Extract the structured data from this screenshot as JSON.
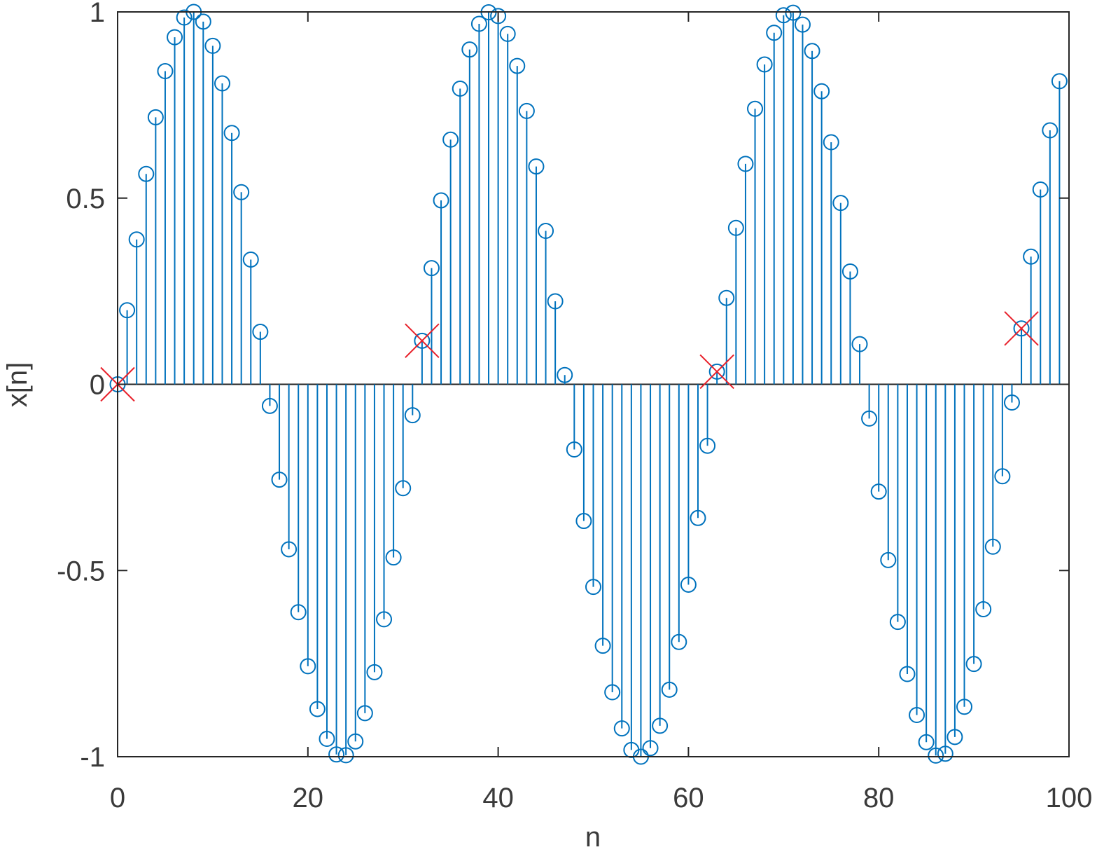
{
  "chart_data": {
    "type": "stem",
    "xlabel": "n",
    "ylabel": "x[n]",
    "xlim": [
      0,
      100
    ],
    "ylim": [
      -1,
      1
    ],
    "xticks": [
      0,
      20,
      40,
      60,
      80,
      100
    ],
    "yticks": [
      -1,
      -0.5,
      0,
      0.5,
      1
    ],
    "series": [
      {
        "color": "#0072bd",
        "marker": "circle",
        "x": [
          0,
          1,
          2,
          3,
          4,
          5,
          6,
          7,
          8,
          9,
          10,
          11,
          12,
          13,
          14,
          15,
          16,
          17,
          18,
          19,
          20,
          21,
          22,
          23,
          24,
          25,
          26,
          27,
          28,
          29,
          30,
          31,
          32,
          33,
          34,
          35,
          36,
          37,
          38,
          39,
          40,
          41,
          42,
          43,
          44,
          45,
          46,
          47,
          48,
          49,
          50,
          51,
          52,
          53,
          54,
          55,
          56,
          57,
          58,
          59,
          60,
          61,
          62,
          63,
          64,
          65,
          66,
          67,
          68,
          69,
          70,
          71,
          72,
          73,
          74,
          75,
          76,
          77,
          78,
          79,
          80,
          81,
          82,
          83,
          84,
          85,
          86,
          87,
          88,
          89,
          90,
          91,
          92,
          93,
          94,
          95,
          96,
          97,
          98,
          99
        ],
        "values": [
          0,
          0.199,
          0.389,
          0.565,
          0.717,
          0.841,
          0.932,
          0.985,
          1.0,
          0.974,
          0.909,
          0.808,
          0.675,
          0.516,
          0.335,
          0.141,
          -0.058,
          -0.256,
          -0.443,
          -0.612,
          -0.757,
          -0.872,
          -0.952,
          -0.994,
          -0.996,
          -0.959,
          -0.883,
          -0.773,
          -0.631,
          -0.465,
          -0.279,
          -0.083,
          0.117,
          0.312,
          0.494,
          0.657,
          0.794,
          0.899,
          0.968,
          0.999,
          0.989,
          0.941,
          0.855,
          0.734,
          0.585,
          0.412,
          0.223,
          0.025,
          -0.175,
          -0.367,
          -0.544,
          -0.702,
          -0.827,
          -0.924,
          -0.982,
          -1.0,
          -0.977,
          -0.917,
          -0.82,
          -0.692,
          -0.538,
          -0.359,
          -0.165,
          0.034,
          0.232,
          0.42,
          0.592,
          0.74,
          0.859,
          0.944,
          0.991,
          0.998,
          0.966,
          0.895,
          0.787,
          0.65,
          0.487,
          0.303,
          0.108,
          -0.092,
          -0.288,
          -0.472,
          -0.638,
          -0.778,
          -0.888,
          -0.961,
          -0.997,
          -0.992,
          -0.947,
          -0.866,
          -0.751,
          -0.604,
          -0.436,
          -0.247,
          -0.049,
          0.15,
          0.343,
          0.523,
          0.682,
          0.814
        ]
      },
      {
        "color": "#e8202a",
        "marker": "x",
        "x": [
          0,
          32,
          63,
          95
        ],
        "values": [
          0,
          0.117,
          0.034,
          0.15
        ]
      }
    ]
  }
}
